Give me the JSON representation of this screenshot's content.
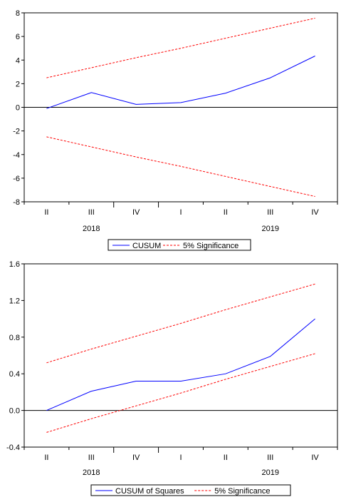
{
  "chart_data": [
    {
      "type": "line",
      "title": "",
      "xlabel": "",
      "ylabel": "",
      "categories": [
        "II",
        "III",
        "IV",
        "I",
        "II",
        "III",
        "IV"
      ],
      "year_labels": [
        {
          "label": "2018",
          "index": 1
        },
        {
          "label": "2019",
          "index": 5
        }
      ],
      "ylim": [
        -8,
        8
      ],
      "yticks": [
        -8,
        -6,
        -4,
        -2,
        0,
        2,
        4,
        6,
        8
      ],
      "ytick_labels": [
        "-8",
        "-6",
        "-4",
        "-2",
        "0",
        "2",
        "4",
        "6",
        "8"
      ],
      "zero_line": true,
      "grid": false,
      "legend_position": "bottom",
      "series": [
        {
          "name": "CUSUM",
          "color": "#0000ff",
          "style": "solid",
          "values": [
            -0.1,
            1.25,
            0.25,
            0.4,
            1.2,
            2.5,
            4.35
          ]
        },
        {
          "name": "5% Significance",
          "color": "#ff0000",
          "style": "dashed",
          "values": [
            2.5,
            3.35,
            4.2,
            5.0,
            5.85,
            6.7,
            7.55
          ]
        },
        {
          "name": "",
          "color": "#ff0000",
          "style": "dashed",
          "values": [
            -2.5,
            -3.35,
            -4.2,
            -5.0,
            -5.85,
            -6.7,
            -7.55
          ]
        }
      ]
    },
    {
      "type": "line",
      "title": "",
      "xlabel": "",
      "ylabel": "",
      "categories": [
        "II",
        "III",
        "IV",
        "I",
        "II",
        "III",
        "IV"
      ],
      "year_labels": [
        {
          "label": "2018",
          "index": 1
        },
        {
          "label": "2019",
          "index": 5
        }
      ],
      "ylim": [
        -0.4,
        1.6
      ],
      "yticks": [
        -0.4,
        0.0,
        0.4,
        0.8,
        1.2,
        1.6
      ],
      "ytick_labels": [
        "-0.4",
        "0.0",
        "0.4",
        "0.8",
        "1.2",
        "1.6"
      ],
      "zero_line": true,
      "grid": false,
      "legend_position": "bottom",
      "series": [
        {
          "name": "CUSUM of Squares",
          "color": "#0000ff",
          "style": "solid",
          "values": [
            0.0,
            0.21,
            0.32,
            0.32,
            0.4,
            0.59,
            1.0
          ]
        },
        {
          "name": "5% Significance",
          "color": "#ff0000",
          "style": "dashed",
          "values": [
            0.52,
            0.67,
            0.81,
            0.95,
            1.1,
            1.24,
            1.38
          ]
        },
        {
          "name": "",
          "color": "#ff0000",
          "style": "dashed",
          "values": [
            -0.24,
            -0.09,
            0.05,
            0.19,
            0.34,
            0.48,
            0.62
          ]
        }
      ]
    }
  ]
}
